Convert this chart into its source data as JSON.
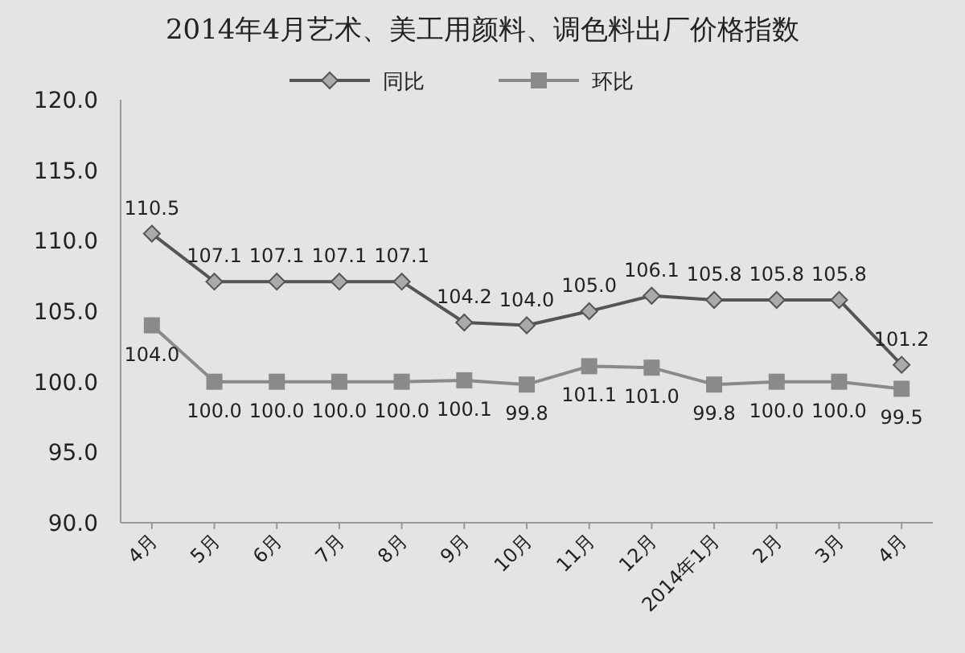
{
  "chart_data": {
    "type": "line",
    "title": "2014年4月艺术、美工用颜料、调色料出厂价格指数",
    "categories": [
      "4月",
      "5月",
      "6月",
      "7月",
      "8月",
      "9月",
      "10月",
      "11月",
      "12月",
      "2014年1月",
      "2月",
      "3月",
      "4月"
    ],
    "series": [
      {
        "name": "同比",
        "color": "#555555",
        "marker": "diamond",
        "values": [
          110.5,
          107.1,
          107.1,
          107.1,
          107.1,
          104.2,
          104.0,
          105.0,
          106.1,
          105.8,
          105.8,
          105.8,
          101.2
        ],
        "value_labels": [
          "110.5",
          "107.1",
          "107.1",
          "107.1",
          "107.1",
          "104.2",
          "104.0",
          "105.0",
          "106.1",
          "105.8",
          "105.8",
          "105.8",
          "101.2"
        ]
      },
      {
        "name": "环比",
        "color": "#8a8a8a",
        "marker": "square",
        "values": [
          104.0,
          100.0,
          100.0,
          100.0,
          100.0,
          100.1,
          99.8,
          101.1,
          101.0,
          99.8,
          100.0,
          100.0,
          99.5
        ],
        "value_labels": [
          "104.0",
          "100.0",
          "100.0",
          "100.0",
          "100.0",
          "100.1",
          "99.8",
          "101.1",
          "101.0",
          "99.8",
          "100.0",
          "100.0",
          "99.5"
        ]
      }
    ],
    "ylim": [
      90,
      120
    ],
    "yticks": [
      {
        "value": 90,
        "label": "90.0"
      },
      {
        "value": 95,
        "label": "95.0"
      },
      {
        "value": 100,
        "label": "100.0"
      },
      {
        "value": 105,
        "label": "105.0"
      },
      {
        "value": 110,
        "label": "110.0"
      },
      {
        "value": 115,
        "label": "115.0"
      },
      {
        "value": 120,
        "label": "120.0"
      }
    ],
    "legend": "top",
    "grid": false
  }
}
